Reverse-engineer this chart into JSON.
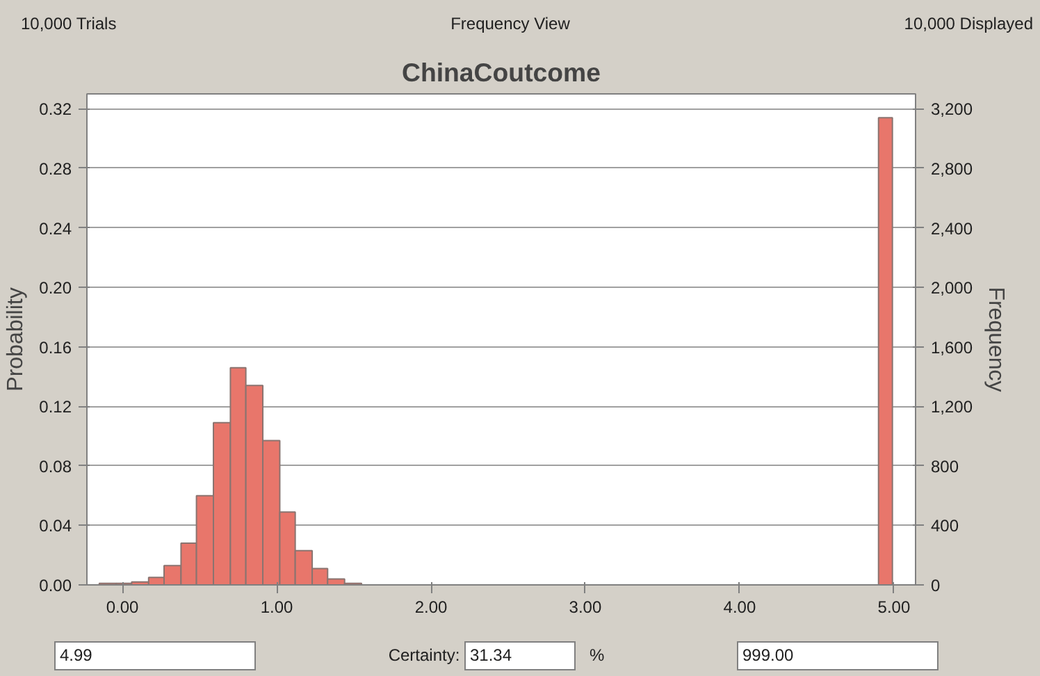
{
  "chart_data": {
    "type": "histogram",
    "title": "ChinaCoutcome",
    "ylabel": "Probability",
    "y2label": "Frequency",
    "bins": [
      -0.15,
      -0.04,
      0.06,
      0.17,
      0.27,
      0.38,
      0.48,
      0.59,
      0.7,
      0.8,
      0.91,
      1.02,
      1.12,
      1.23,
      1.33,
      1.44,
      1.55,
      4.9,
      4.99
    ],
    "values": [
      0.001,
      0.001,
      0.002,
      0.005,
      0.013,
      0.028,
      0.06,
      0.109,
      0.146,
      0.134,
      0.097,
      0.049,
      0.023,
      0.011,
      0.004,
      0.001,
      0,
      0.314
    ],
    "color": "#e8766b",
    "xlim": [
      -0.23,
      5.14
    ],
    "ylim": [
      0,
      0.33
    ],
    "y2lim": [
      0,
      3300
    ],
    "xticks": [
      {
        "value": 0,
        "label": "0.00"
      },
      {
        "value": 1,
        "label": "1.00"
      },
      {
        "value": 2,
        "label": "2.00"
      },
      {
        "value": 3,
        "label": "3.00"
      },
      {
        "value": 4,
        "label": "4.00"
      },
      {
        "value": 5,
        "label": "5.00"
      }
    ],
    "yticks": [
      {
        "value": 0,
        "label": "0.00"
      },
      {
        "value": 0.04,
        "label": "0.04"
      },
      {
        "value": 0.08,
        "label": "0.08"
      },
      {
        "value": 0.12,
        "label": "0.12"
      },
      {
        "value": 0.16,
        "label": "0.16"
      },
      {
        "value": 0.2,
        "label": "0.20"
      },
      {
        "value": 0.24,
        "label": "0.24"
      },
      {
        "value": 0.28,
        "label": "0.28"
      },
      {
        "value": 0.32,
        "label": "0.32"
      }
    ],
    "y2ticks": [
      0,
      400,
      800,
      {
        "value": 1200,
        "label": "1,200"
      },
      {
        "value": 1600,
        "label": "1,600"
      },
      {
        "value": 2000,
        "label": "2,000"
      },
      {
        "value": 2400,
        "label": "2,400"
      },
      {
        "value": 2800,
        "label": "2,800"
      },
      {
        "value": 3200,
        "label": "3,200"
      }
    ],
    "grid": "y",
    "annotations": [
      "10,000 Trials",
      "Frequency View",
      "10,000 Displayed",
      "4.99",
      "Certainty:",
      "31.34",
      "%",
      "999.00"
    ]
  }
}
